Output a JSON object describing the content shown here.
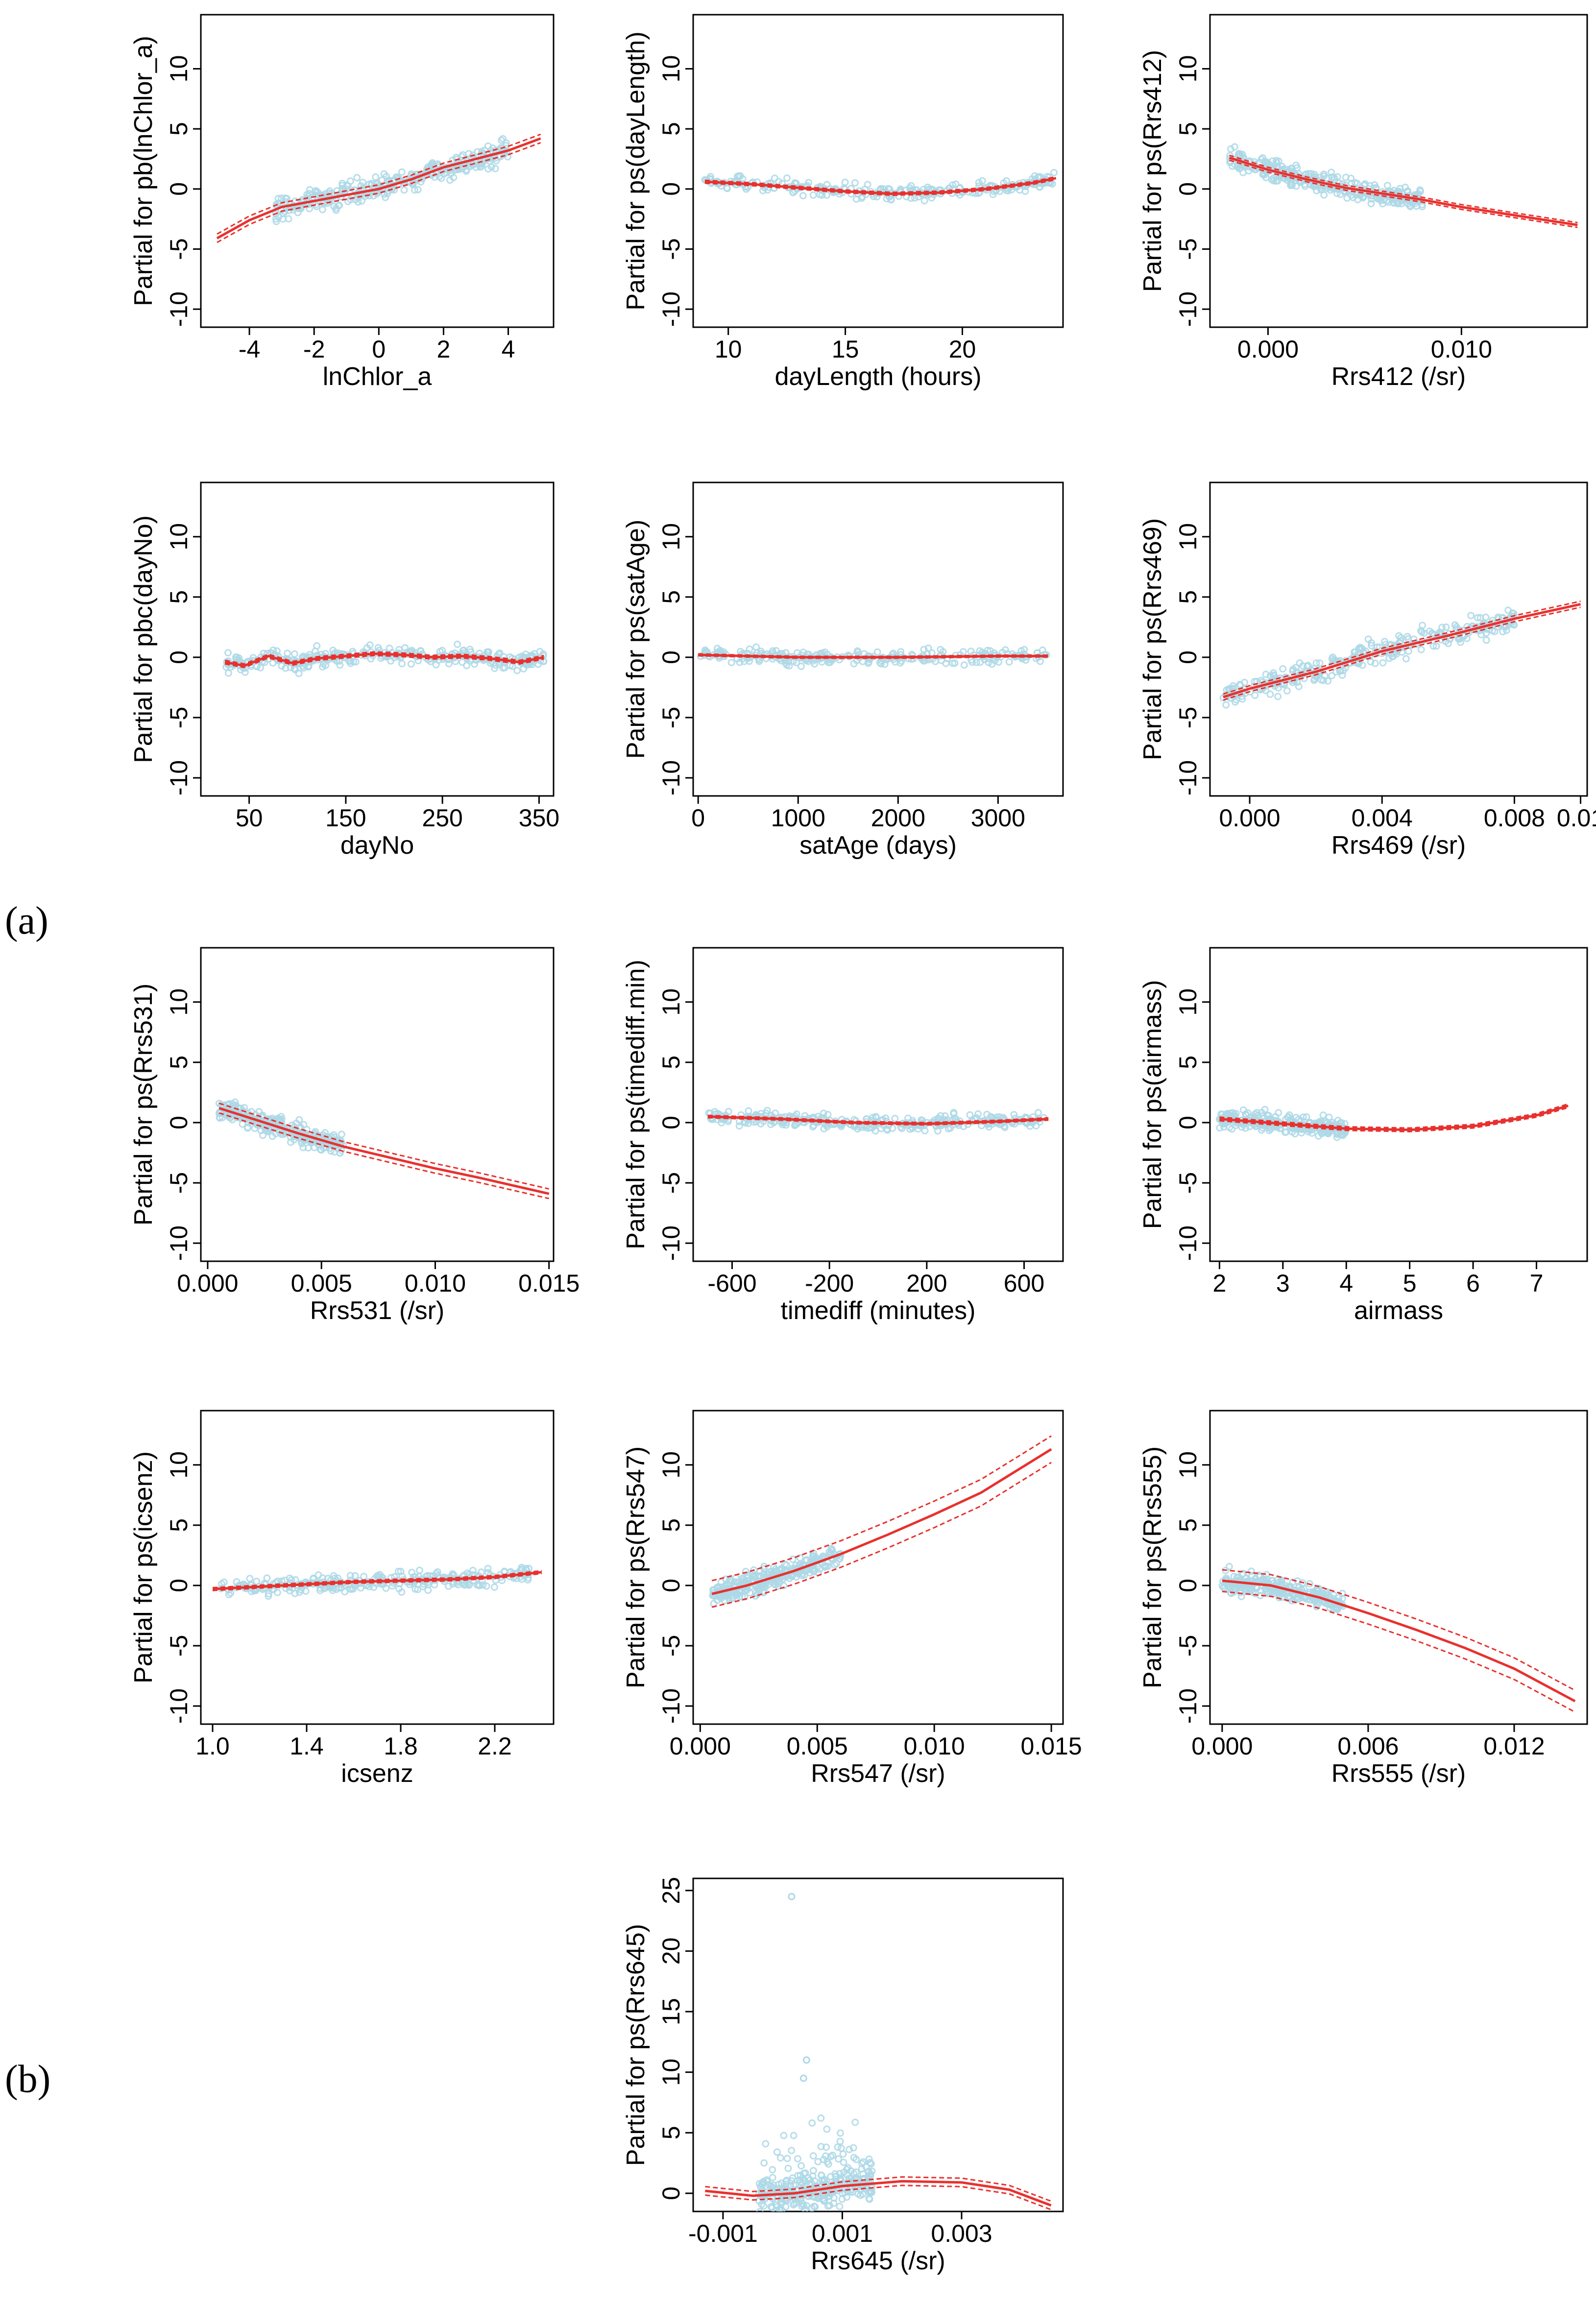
{
  "figure": {
    "panel_a_label": "(a)",
    "panel_b_label": "(b)"
  },
  "colors": {
    "points": "#add8e6",
    "fit": "#e8312e",
    "axes": "#000000"
  },
  "chart_data": [
    {
      "type": "scatter",
      "ylabel": "Partial for pb(lnChlor_a)",
      "xlabel": "lnChlor_a",
      "xlim": [
        -5.5,
        5.4
      ],
      "ylim": [
        -11.5,
        14.5
      ],
      "xticks": [
        -4,
        -2,
        0,
        2,
        4
      ],
      "xtick_labels": [
        "-4",
        "-2",
        "0",
        "2",
        "4"
      ],
      "yticks": [
        -10,
        -5,
        0,
        5,
        10
      ],
      "ytick_labels": [
        "-10",
        "-5",
        "0",
        "5",
        "10"
      ],
      "fit": {
        "x": [
          -5.0,
          -4.0,
          -3.0,
          -2.0,
          -1.0,
          0.0,
          1.0,
          2.0,
          3.0,
          4.0,
          5.0
        ],
        "y": [
          -4.1,
          -2.6,
          -1.5,
          -1.0,
          -0.5,
          0.0,
          0.8,
          1.8,
          2.5,
          3.2,
          4.2
        ]
      },
      "band": 0.35,
      "cloud": {
        "xrange": [
          -3.2,
          4.0
        ],
        "spread": 0.8,
        "n": 320
      }
    },
    {
      "type": "scatter",
      "ylabel": "Partial for ps(dayLength)",
      "xlabel": "dayLength (hours)",
      "xlim": [
        8.5,
        24.3
      ],
      "ylim": [
        -11.5,
        14.5
      ],
      "xticks": [
        10,
        15,
        20
      ],
      "xtick_labels": [
        "10",
        "15",
        "20"
      ],
      "yticks": [
        -10,
        -5,
        0,
        5,
        10
      ],
      "ytick_labels": [
        "-10",
        "-5",
        "0",
        "5",
        "10"
      ],
      "fit": {
        "x": [
          9,
          11,
          13,
          15,
          17,
          19,
          21,
          23,
          24
        ],
        "y": [
          0.6,
          0.4,
          0.1,
          -0.2,
          -0.4,
          -0.3,
          0.0,
          0.5,
          0.9
        ]
      },
      "band": 0.12,
      "cloud": {
        "xrange": [
          9,
          24
        ],
        "spread": 0.5,
        "n": 260
      }
    },
    {
      "type": "scatter",
      "ylabel": "Partial for ps(Rrs412)",
      "xlabel": "Rrs412 (/sr)",
      "xlim": [
        -0.003,
        0.0165
      ],
      "ylim": [
        -11.5,
        14.5
      ],
      "xticks": [
        0.0,
        0.01
      ],
      "xtick_labels": [
        "0.000",
        "0.010"
      ],
      "yticks": [
        -10,
        -5,
        0,
        5,
        10
      ],
      "ytick_labels": [
        "-10",
        "-5",
        "0",
        "5",
        "10"
      ],
      "fit": {
        "x": [
          -0.002,
          0.0,
          0.002,
          0.004,
          0.006,
          0.008,
          0.01,
          0.012,
          0.014,
          0.016
        ],
        "y": [
          2.6,
          1.6,
          0.8,
          0.1,
          -0.4,
          -0.9,
          -1.5,
          -2.0,
          -2.5,
          -3.0
        ]
      },
      "band": 0.2,
      "cloud": {
        "xrange": [
          -0.002,
          0.008
        ],
        "spread": 0.7,
        "n": 320
      }
    },
    {
      "type": "scatter",
      "ylabel": "Partial for pbc(dayNo)",
      "xlabel": "dayNo",
      "xlim": [
        0,
        365
      ],
      "ylim": [
        -11.5,
        14.5
      ],
      "xticks": [
        50,
        150,
        250,
        350
      ],
      "xtick_labels": [
        "50",
        "150",
        "250",
        "350"
      ],
      "yticks": [
        -10,
        -5,
        0,
        5,
        10
      ],
      "ytick_labels": [
        "-10",
        "-5",
        "0",
        "5",
        "10"
      ],
      "fit": {
        "x": [
          25,
          45,
          70,
          95,
          120,
          150,
          180,
          210,
          240,
          270,
          300,
          330,
          355
        ],
        "y": [
          -0.4,
          -0.7,
          0.1,
          -0.5,
          -0.1,
          0.1,
          0.3,
          0.2,
          0.0,
          0.1,
          -0.1,
          -0.4,
          0.0
        ]
      },
      "band": 0.15,
      "cloud": {
        "xrange": [
          25,
          355
        ],
        "spread": 0.6,
        "n": 320
      }
    },
    {
      "type": "scatter",
      "ylabel": "Partial for ps(satAge)",
      "xlabel": "satAge (days)",
      "xlim": [
        -50,
        3650
      ],
      "ylim": [
        -11.5,
        14.5
      ],
      "xticks": [
        0,
        1000,
        2000,
        3000
      ],
      "xtick_labels": [
        "0",
        "1000",
        "2000",
        "3000"
      ],
      "yticks": [
        -10,
        -5,
        0,
        5,
        10
      ],
      "ytick_labels": [
        "-10",
        "-5",
        "0",
        "5",
        "10"
      ],
      "fit": {
        "x": [
          0,
          1000,
          2000,
          3000,
          3500
        ],
        "y": [
          0.2,
          0.0,
          0.0,
          0.1,
          0.1
        ]
      },
      "band": 0.08,
      "cloud": {
        "xrange": [
          0,
          3500
        ],
        "spread": 0.5,
        "n": 260
      }
    },
    {
      "type": "scatter",
      "ylabel": "Partial for ps(Rrs469)",
      "xlabel": "Rrs469 (/sr)",
      "xlim": [
        -0.0012,
        0.0102
      ],
      "ylim": [
        -11.5,
        14.5
      ],
      "xticks": [
        0.0,
        0.004,
        0.008,
        0.01
      ],
      "xtick_labels": [
        "0.000",
        "0.004",
        "0.008",
        "0.01"
      ],
      "yticks": [
        -10,
        -5,
        0,
        5,
        10
      ],
      "ytick_labels": [
        "-10",
        "-5",
        "0",
        "5",
        "10"
      ],
      "fit": {
        "x": [
          -0.0008,
          0.0,
          0.002,
          0.004,
          0.006,
          0.008,
          0.01
        ],
        "y": [
          -3.3,
          -2.6,
          -1.2,
          0.5,
          1.8,
          3.2,
          4.4
        ]
      },
      "band": 0.25,
      "cloud": {
        "xrange": [
          -0.0008,
          0.008
        ],
        "spread": 0.8,
        "n": 320
      }
    },
    {
      "type": "scatter",
      "ylabel": "Partial for ps(Rrs531)",
      "xlabel": "Rrs531 (/sr)",
      "xlim": [
        -0.0003,
        0.0152
      ],
      "ylim": [
        -11.5,
        14.5
      ],
      "xticks": [
        0.0,
        0.005,
        0.01,
        0.015
      ],
      "xtick_labels": [
        "0.000",
        "0.005",
        "0.010",
        "0.015"
      ],
      "yticks": [
        -10,
        -5,
        0,
        5,
        10
      ],
      "ytick_labels": [
        "-10",
        "-5",
        "0",
        "5",
        "10"
      ],
      "fit": {
        "x": [
          0.0005,
          0.002,
          0.004,
          0.006,
          0.008,
          0.01,
          0.012,
          0.015
        ],
        "y": [
          1.2,
          0.3,
          -0.9,
          -2.0,
          -2.9,
          -3.8,
          -4.6,
          -5.9
        ]
      },
      "band": 0.4,
      "cloud": {
        "xrange": [
          0.0005,
          0.006
        ],
        "spread": 0.7,
        "n": 280
      }
    },
    {
      "type": "scatter",
      "ylabel": "Partial for ps(timediff.min)",
      "xlabel": "timediff (minutes)",
      "xlim": [
        -760,
        760
      ],
      "ylim": [
        -11.5,
        14.5
      ],
      "xticks": [
        -600,
        -200,
        200,
        600
      ],
      "xtick_labels": [
        "-600",
        "-200",
        "200",
        "600"
      ],
      "yticks": [
        -10,
        -5,
        0,
        5,
        10
      ],
      "ytick_labels": [
        "-10",
        "-5",
        "0",
        "5",
        "10"
      ],
      "fit": {
        "x": [
          -700,
          -400,
          -100,
          200,
          500,
          700
        ],
        "y": [
          0.5,
          0.3,
          0.0,
          -0.1,
          0.1,
          0.3
        ]
      },
      "band": 0.1,
      "cloud": {
        "xrange": [
          -700,
          700
        ],
        "spread": 0.5,
        "n": 320
      }
    },
    {
      "type": "scatter",
      "ylabel": "Partial for ps(airmass)",
      "xlabel": "airmass",
      "xlim": [
        1.85,
        7.8
      ],
      "ylim": [
        -11.5,
        14.5
      ],
      "xticks": [
        2,
        3,
        4,
        5,
        6,
        7
      ],
      "xtick_labels": [
        "2",
        "3",
        "4",
        "5",
        "6",
        "7"
      ],
      "yticks": [
        -10,
        -5,
        0,
        5,
        10
      ],
      "ytick_labels": [
        "-10",
        "-5",
        "0",
        "5",
        "10"
      ],
      "fit": {
        "x": [
          2,
          3,
          4,
          5,
          6,
          7,
          7.5
        ],
        "y": [
          0.3,
          -0.1,
          -0.5,
          -0.6,
          -0.3,
          0.6,
          1.4
        ]
      },
      "band": 0.15,
      "cloud": {
        "xrange": [
          2,
          4
        ],
        "spread": 0.6,
        "n": 280
      }
    },
    {
      "type": "scatter",
      "ylabel": "Partial for ps(icsenz)",
      "xlabel": "icsenz",
      "xlim": [
        0.95,
        2.45
      ],
      "ylim": [
        -11.5,
        14.5
      ],
      "xticks": [
        1.0,
        1.4,
        1.8,
        2.2
      ],
      "xtick_labels": [
        "1.0",
        "1.4",
        "1.8",
        "2.2"
      ],
      "yticks": [
        -10,
        -5,
        0,
        5,
        10
      ],
      "ytick_labels": [
        "-10",
        "-5",
        "0",
        "5",
        "10"
      ],
      "fit": {
        "x": [
          1.0,
          1.2,
          1.4,
          1.6,
          1.8,
          2.0,
          2.2,
          2.4
        ],
        "y": [
          -0.3,
          -0.1,
          0.1,
          0.3,
          0.4,
          0.5,
          0.7,
          1.1
        ]
      },
      "band": 0.12,
      "cloud": {
        "xrange": [
          1.0,
          2.35
        ],
        "spread": 0.6,
        "n": 280
      }
    },
    {
      "type": "scatter",
      "ylabel": "Partial for ps(Rrs547)",
      "xlabel": "Rrs547 (/sr)",
      "xlim": [
        -0.0003,
        0.0155
      ],
      "ylim": [
        -11.5,
        14.5
      ],
      "xticks": [
        0.0,
        0.005,
        0.01,
        0.015
      ],
      "xtick_labels": [
        "0.000",
        "0.005",
        "0.010",
        "0.015"
      ],
      "yticks": [
        -10,
        -5,
        0,
        5,
        10
      ],
      "ytick_labels": [
        "-10",
        "-5",
        "0",
        "5",
        "10"
      ],
      "fit": {
        "x": [
          0.0005,
          0.002,
          0.004,
          0.006,
          0.008,
          0.01,
          0.012,
          0.015
        ],
        "y": [
          -0.7,
          0.0,
          1.2,
          2.6,
          4.2,
          5.9,
          7.7,
          11.3
        ]
      },
      "band": 1.1,
      "cloud": {
        "xrange": [
          0.0005,
          0.006
        ],
        "spread": 0.8,
        "n": 280
      }
    },
    {
      "type": "scatter",
      "ylabel": "Partial for ps(Rrs555)",
      "xlabel": "Rrs555 (/sr)",
      "xlim": [
        -0.0005,
        0.015
      ],
      "ylim": [
        -11.5,
        14.5
      ],
      "xticks": [
        0.0,
        0.006,
        0.012
      ],
      "xtick_labels": [
        "0.000",
        "0.006",
        "0.012"
      ],
      "yticks": [
        -10,
        -5,
        0,
        5,
        10
      ],
      "ytick_labels": [
        "-10",
        "-5",
        "0",
        "5",
        "10"
      ],
      "fit": {
        "x": [
          0.0,
          0.002,
          0.004,
          0.006,
          0.008,
          0.01,
          0.012,
          0.0145
        ],
        "y": [
          0.4,
          0.0,
          -1.0,
          -2.3,
          -3.7,
          -5.2,
          -6.9,
          -9.6
        ]
      },
      "band": 0.9,
      "cloud": {
        "xrange": [
          0.0,
          0.005
        ],
        "spread": 0.7,
        "n": 280
      }
    },
    {
      "type": "scatter",
      "ylabel": "Partial for ps(Rrs645)",
      "xlabel": "Rrs645 (/sr)",
      "xlim": [
        -0.0015,
        0.0047
      ],
      "ylim": [
        -1.5,
        26
      ],
      "xticks": [
        -0.001,
        0.001,
        0.003
      ],
      "xtick_labels": [
        "-0.001",
        "0.001",
        "0.003"
      ],
      "yticks": [
        0,
        5,
        10,
        15,
        20,
        25
      ],
      "ytick_labels": [
        "0",
        "5",
        "10",
        "15",
        "20",
        "25"
      ],
      "fit": {
        "x": [
          -0.0013,
          -0.0005,
          0.0002,
          0.001,
          0.002,
          0.003,
          0.0038,
          0.0045
        ],
        "y": [
          0.2,
          -0.2,
          0.0,
          0.6,
          1.0,
          0.9,
          0.3,
          -1.0
        ]
      },
      "band": 0.35,
      "cloud": {
        "xrange": [
          -0.0004,
          0.0015
        ],
        "spread": 1.2,
        "n": 320
      }
    }
  ]
}
